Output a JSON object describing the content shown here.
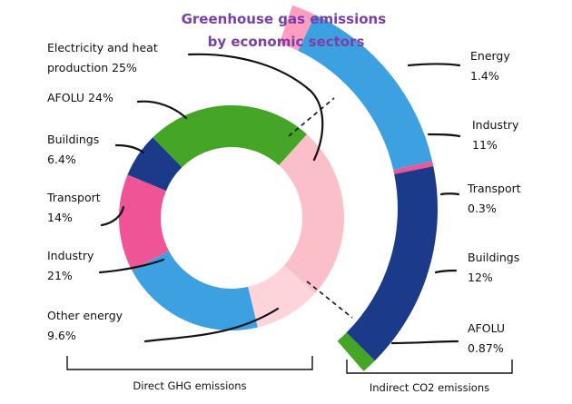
{
  "chart_data": [
    {
      "type": "donut",
      "title": "Greenhouse gas emissions by economic sectors",
      "group_label": "Direct GHG  emissions",
      "slices": [
        {
          "label": "Electricity and heat production",
          "value_text": "25%",
          "value": 25,
          "color": "#fbbfc9"
        },
        {
          "label": "Other energy",
          "value_text": "9.6%",
          "value": 9.6,
          "color": "#fcd4d9"
        },
        {
          "label": "Industry",
          "value_text": "21%",
          "value": 21,
          "color": "#3da0e0"
        },
        {
          "label": "Transport",
          "value_text": "14%",
          "value": 14,
          "color": "#ef5596"
        },
        {
          "label": "Buildings",
          "value_text": "6.4%",
          "value": 6.4,
          "color": "#1b3a8a"
        },
        {
          "label": "AFOLU",
          "value_text": "24%",
          "value": 24,
          "color": "#45a526"
        }
      ]
    },
    {
      "type": "bar-of-pie",
      "group_label": "Indirect CO2 emissions",
      "slices": [
        {
          "label": "Energy",
          "value_text": "1.4%",
          "value": 1.4,
          "color": "#fd9ec0"
        },
        {
          "label": "Industry",
          "value_text": "11%",
          "value": 11,
          "color": "#3da0e0"
        },
        {
          "label": "Transport",
          "value_text": "0.3%",
          "value": 0.3,
          "color": "#ef5596"
        },
        {
          "label": "Buildings",
          "value_text": "12%",
          "value": 12,
          "color": "#1b3a8a"
        },
        {
          "label": "AFOLU",
          "value_text": "0.87%",
          "value": 0.87,
          "color": "#45a526"
        }
      ]
    }
  ]
}
